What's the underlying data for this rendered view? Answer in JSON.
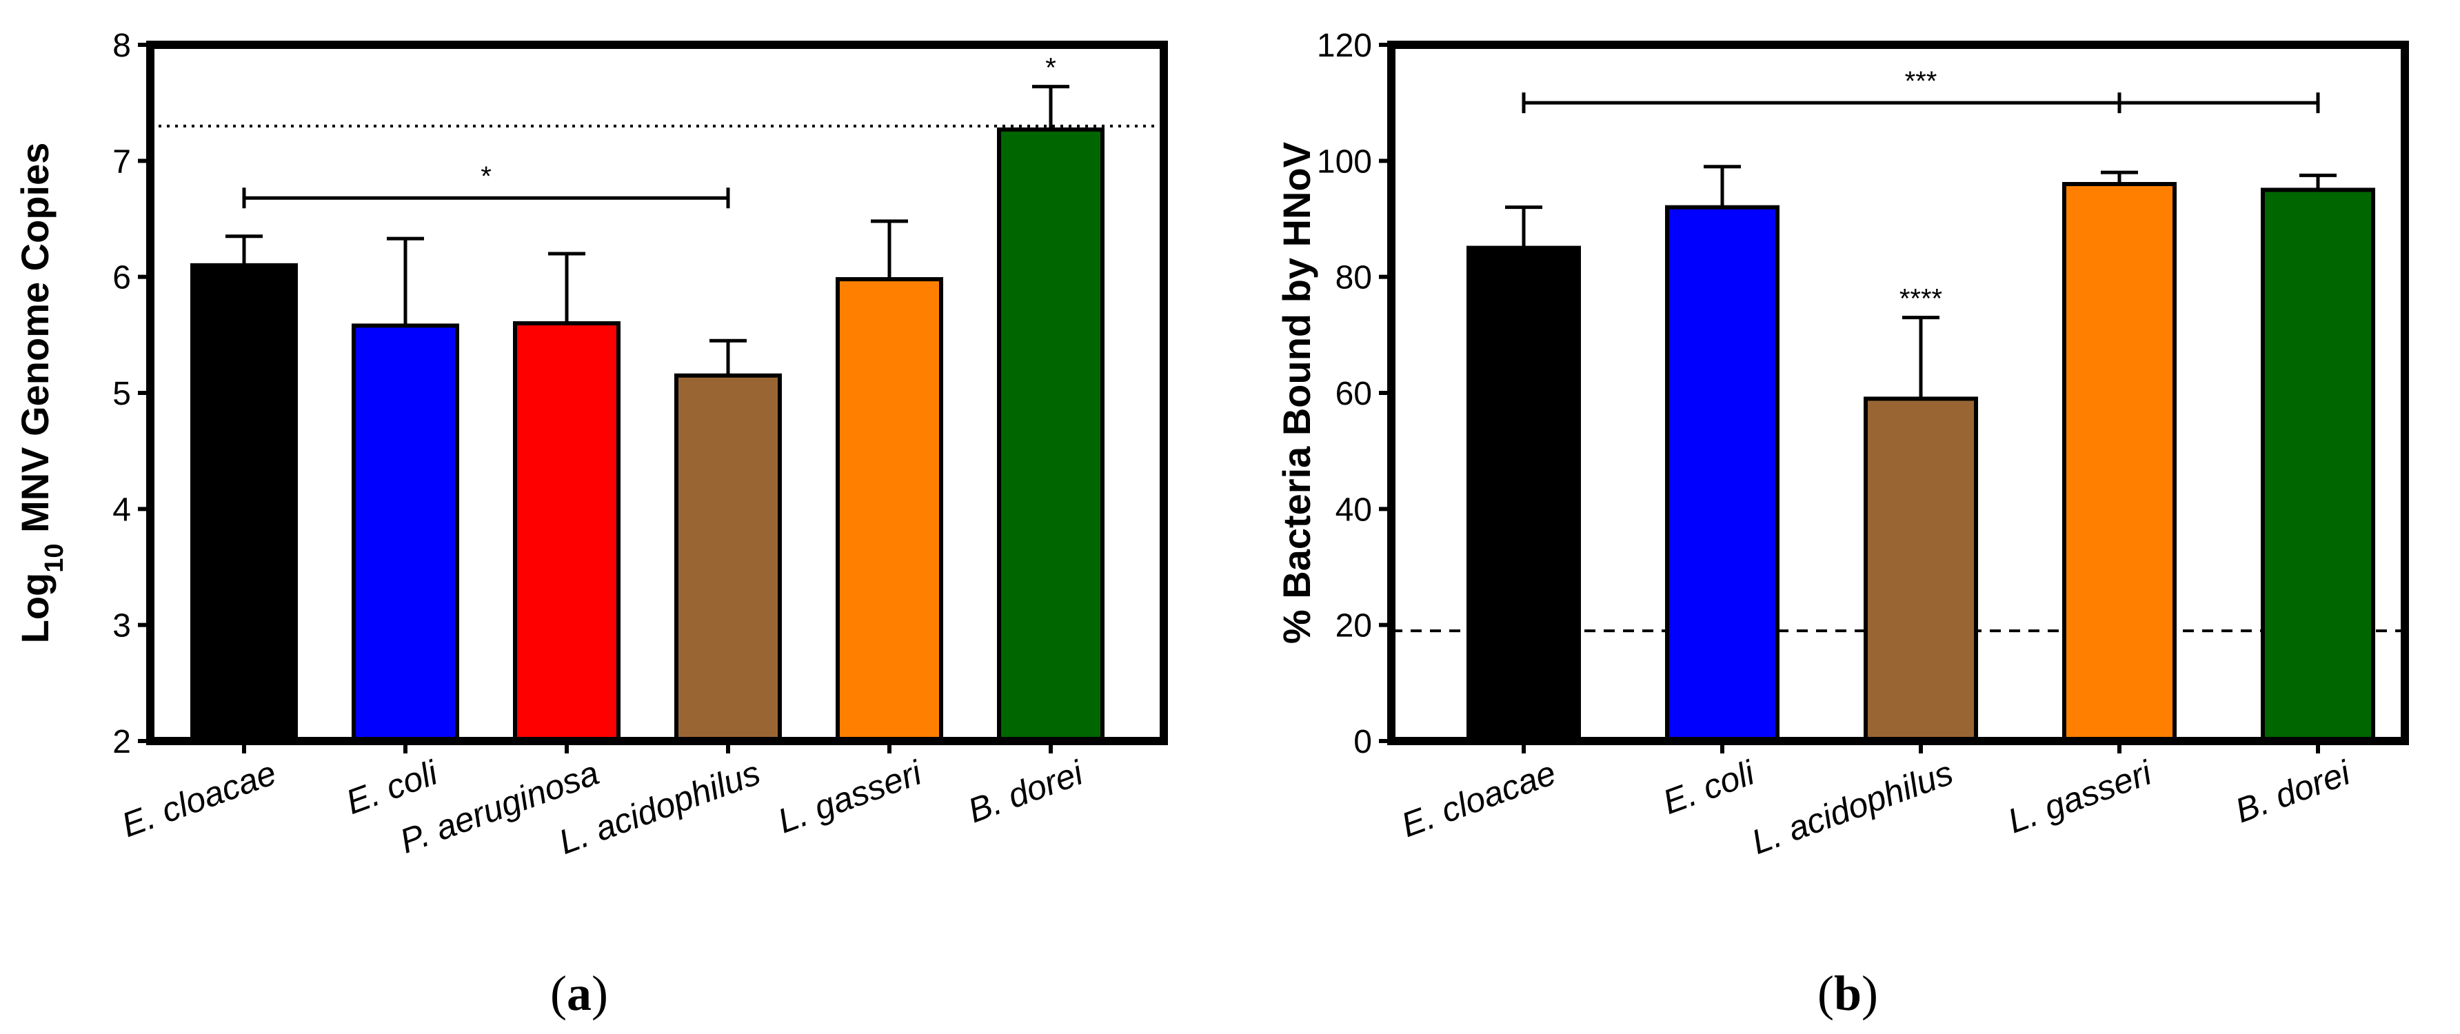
{
  "chart_data": [
    {
      "type": "bar",
      "panel_label": "a",
      "ylabel_prefix": "Log",
      "ylabel_sub": "10",
      "ylabel_suffix": " MNV Genome Copies",
      "ylim": [
        2,
        8
      ],
      "yticks": [
        2,
        3,
        4,
        5,
        6,
        7,
        8
      ],
      "categories": [
        "E. cloacae",
        "E. coli",
        "P. aeruginosa",
        "L. acidophilus",
        "L. gasseri",
        "B. dorei"
      ],
      "values": [
        6.1,
        5.58,
        5.6,
        5.15,
        5.98,
        7.27
      ],
      "errors": [
        0.25,
        0.75,
        0.6,
        0.3,
        0.5,
        0.37
      ],
      "colors": [
        "#000000",
        "#0000ff",
        "#ff0000",
        "#996633",
        "#ff8000",
        "#006600"
      ],
      "reference_line": {
        "value": 7.3,
        "style": "dotted"
      },
      "annotations": [
        {
          "text": "*",
          "type": "bracket",
          "from": 0,
          "to": 3,
          "y": 6.68
        },
        {
          "text": "*",
          "type": "bar",
          "bar": 5
        }
      ]
    },
    {
      "type": "bar",
      "panel_label": "b",
      "ylabel": "% Bacteria Bound by HNoV",
      "ylim": [
        0,
        120
      ],
      "yticks": [
        0,
        20,
        40,
        60,
        80,
        100,
        120
      ],
      "categories": [
        "E. cloacae",
        "E. coli",
        "L. acidophilus",
        "L. gasseri",
        "B. dorei"
      ],
      "values": [
        85,
        92,
        59,
        96,
        95
      ],
      "errors": [
        7,
        7,
        14,
        2,
        2.5
      ],
      "colors": [
        "#000000",
        "#0000ff",
        "#996633",
        "#ff8000",
        "#006600"
      ],
      "reference_line": {
        "value": 19,
        "style": "dashed"
      },
      "annotations": [
        {
          "text": "***",
          "type": "bracket",
          "from": 0,
          "to": 4,
          "mid_tick": 3,
          "y": 110
        },
        {
          "text": "****",
          "type": "bar",
          "bar": 2
        }
      ]
    }
  ]
}
